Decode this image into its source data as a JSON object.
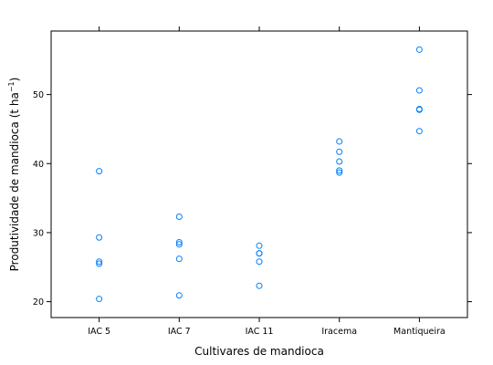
{
  "chart_data": {
    "type": "scatter",
    "categories": [
      "IAC 5",
      "IAC 7",
      "IAC 11",
      "Iracema",
      "Mantiqueira"
    ],
    "series": [
      {
        "values": [
          [
            38.9,
            29.3,
            25.8,
            25.5,
            20.4
          ],
          [
            32.3,
            28.6,
            28.3,
            26.2,
            20.9
          ],
          [
            28.1,
            27.0,
            27.0,
            25.8,
            22.3
          ],
          [
            43.2,
            41.7,
            40.3,
            39.0,
            38.7
          ],
          [
            56.5,
            50.6,
            47.9,
            47.8,
            44.7
          ]
        ],
        "color": "#0080ff"
      }
    ],
    "xlabel": "Cultivares de mandioca",
    "ylabel_prefix": "Produtividade de mandioca (t ha",
    "ylabel_superscript": "−1",
    "ylabel_suffix": ")",
    "yticks": [
      20,
      30,
      40,
      50
    ],
    "ylim": [
      17.7,
      59.2
    ],
    "grid": false,
    "legend": "none"
  }
}
